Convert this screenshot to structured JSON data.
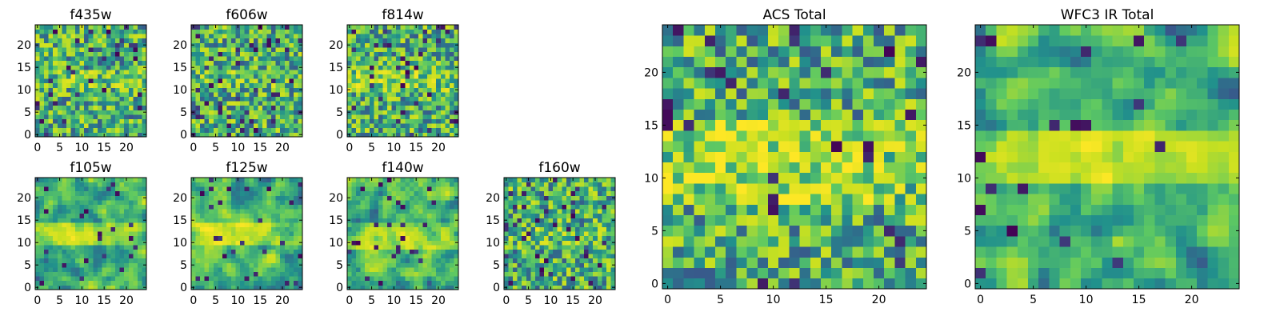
{
  "chart_data": [
    {
      "type": "heatmap",
      "title": "f435w",
      "size": 25,
      "xticks": [
        0,
        5,
        10,
        15,
        20
      ],
      "yticks": [
        0,
        5,
        10,
        15,
        20
      ],
      "seed": 11,
      "smooth": 0,
      "band": [
        11,
        14,
        0.12
      ],
      "speckle": 0.05
    },
    {
      "type": "heatmap",
      "title": "f606w",
      "size": 25,
      "xticks": [
        0,
        5,
        10,
        15,
        20
      ],
      "yticks": [
        0,
        5,
        10,
        15,
        20
      ],
      "seed": 23,
      "smooth": 0,
      "band": [
        11,
        14,
        0.1
      ],
      "speckle": 0.06
    },
    {
      "type": "heatmap",
      "title": "f814w",
      "size": 25,
      "xticks": [
        0,
        5,
        10,
        15,
        20
      ],
      "yticks": [
        0,
        5,
        10,
        15,
        20
      ],
      "seed": 37,
      "smooth": 0,
      "band": [
        10,
        14,
        0.18
      ],
      "speckle": 0.06
    },
    {
      "type": "heatmap",
      "title": "f105w",
      "size": 25,
      "xticks": [
        0,
        5,
        10,
        15,
        20
      ],
      "yticks": [
        0,
        5,
        10,
        15,
        20
      ],
      "seed": 41,
      "smooth": 1,
      "band": [
        10,
        14,
        0.3
      ],
      "speckle": 0.04
    },
    {
      "type": "heatmap",
      "title": "f125w",
      "size": 25,
      "xticks": [
        0,
        5,
        10,
        15,
        20
      ],
      "yticks": [
        0,
        5,
        10,
        15,
        20
      ],
      "seed": 53,
      "smooth": 1,
      "band": [
        10,
        14,
        0.3
      ],
      "speckle": 0.05
    },
    {
      "type": "heatmap",
      "title": "f140w",
      "size": 25,
      "xticks": [
        0,
        5,
        10,
        15,
        20
      ],
      "yticks": [
        0,
        5,
        10,
        15,
        20
      ],
      "seed": 67,
      "smooth": 1,
      "band": [
        9,
        14,
        0.22
      ],
      "speckle": 0.03
    },
    {
      "type": "heatmap",
      "title": "f160w",
      "size": 25,
      "xticks": [
        0,
        5,
        10,
        15,
        20
      ],
      "yticks": [
        0,
        5,
        10,
        15,
        20
      ],
      "seed": 79,
      "smooth": 0,
      "band": [
        10,
        13,
        0.08
      ],
      "speckle": 0.07
    },
    {
      "type": "heatmap",
      "title": "ACS Total",
      "size": 25,
      "xticks": [
        0,
        5,
        10,
        15,
        20
      ],
      "yticks": [
        0,
        5,
        10,
        15,
        20
      ],
      "seed": 97,
      "smooth": 0,
      "band": [
        8,
        15,
        0.25
      ],
      "speckle": 0.05
    },
    {
      "type": "heatmap",
      "title": "WFC3 IR Total",
      "size": 25,
      "xticks": [
        0,
        5,
        10,
        15,
        20
      ],
      "yticks": [
        0,
        5,
        10,
        15,
        20
      ],
      "seed": 113,
      "smooth": 1,
      "band": [
        10,
        14,
        0.3
      ],
      "speckle": 0.04
    }
  ],
  "colormap": [
    "#440154",
    "#3b528b",
    "#21918c",
    "#5ec962",
    "#c8e020",
    "#fde725"
  ]
}
